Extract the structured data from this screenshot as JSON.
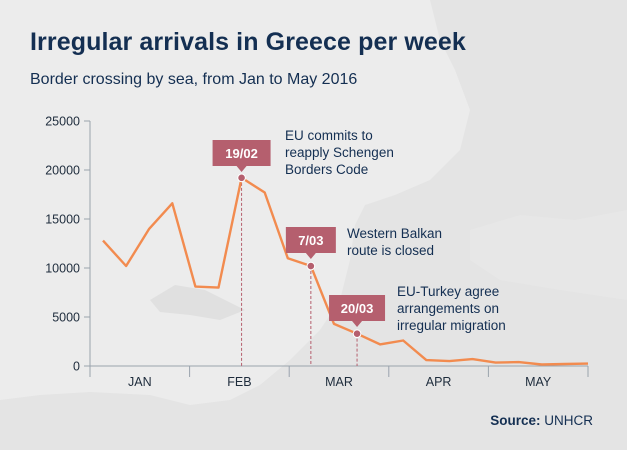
{
  "title": "Irregular arrivals in Greece per week",
  "subtitle": "Border crossing by sea, from Jan to May 2016",
  "source_label": "Source:",
  "source_value": "UNHCR",
  "colors": {
    "line": "#f28b4f",
    "flag": "#b55f6e",
    "marker": "#b55f6e",
    "text": "#142f52",
    "axis": "#9aa3ad"
  },
  "chart_data": {
    "type": "line",
    "title": "Irregular arrivals in Greece per week",
    "xlabel": "",
    "ylabel": "",
    "ylim": [
      0,
      25000
    ],
    "yticks": [
      "25000",
      "20000",
      "15000",
      "10000",
      "5000",
      "0"
    ],
    "xtick_labels": [
      "JAN",
      "FEB",
      "MAR",
      "APR",
      "MAY"
    ],
    "grid": false,
    "series": [
      {
        "values": [
          12800,
          10200,
          14000,
          16600,
          8100,
          8000,
          19200,
          17700,
          11000,
          10200,
          4300,
          3300,
          2200,
          2600,
          600,
          500,
          700,
          350,
          400,
          150,
          200,
          250
        ]
      }
    ],
    "annotations": [
      {
        "point_index": 6,
        "flag": "19/02",
        "lines": [
          "EU commits to",
          "reapply Schengen",
          "Borders Code"
        ]
      },
      {
        "point_index": 9,
        "flag": "7/03",
        "lines": [
          "Western Balkan",
          "route is closed"
        ]
      },
      {
        "point_index": 11,
        "flag": "20/03",
        "lines": [
          "EU-Turkey agree",
          "arrangements on",
          "irregular migration"
        ]
      }
    ]
  }
}
